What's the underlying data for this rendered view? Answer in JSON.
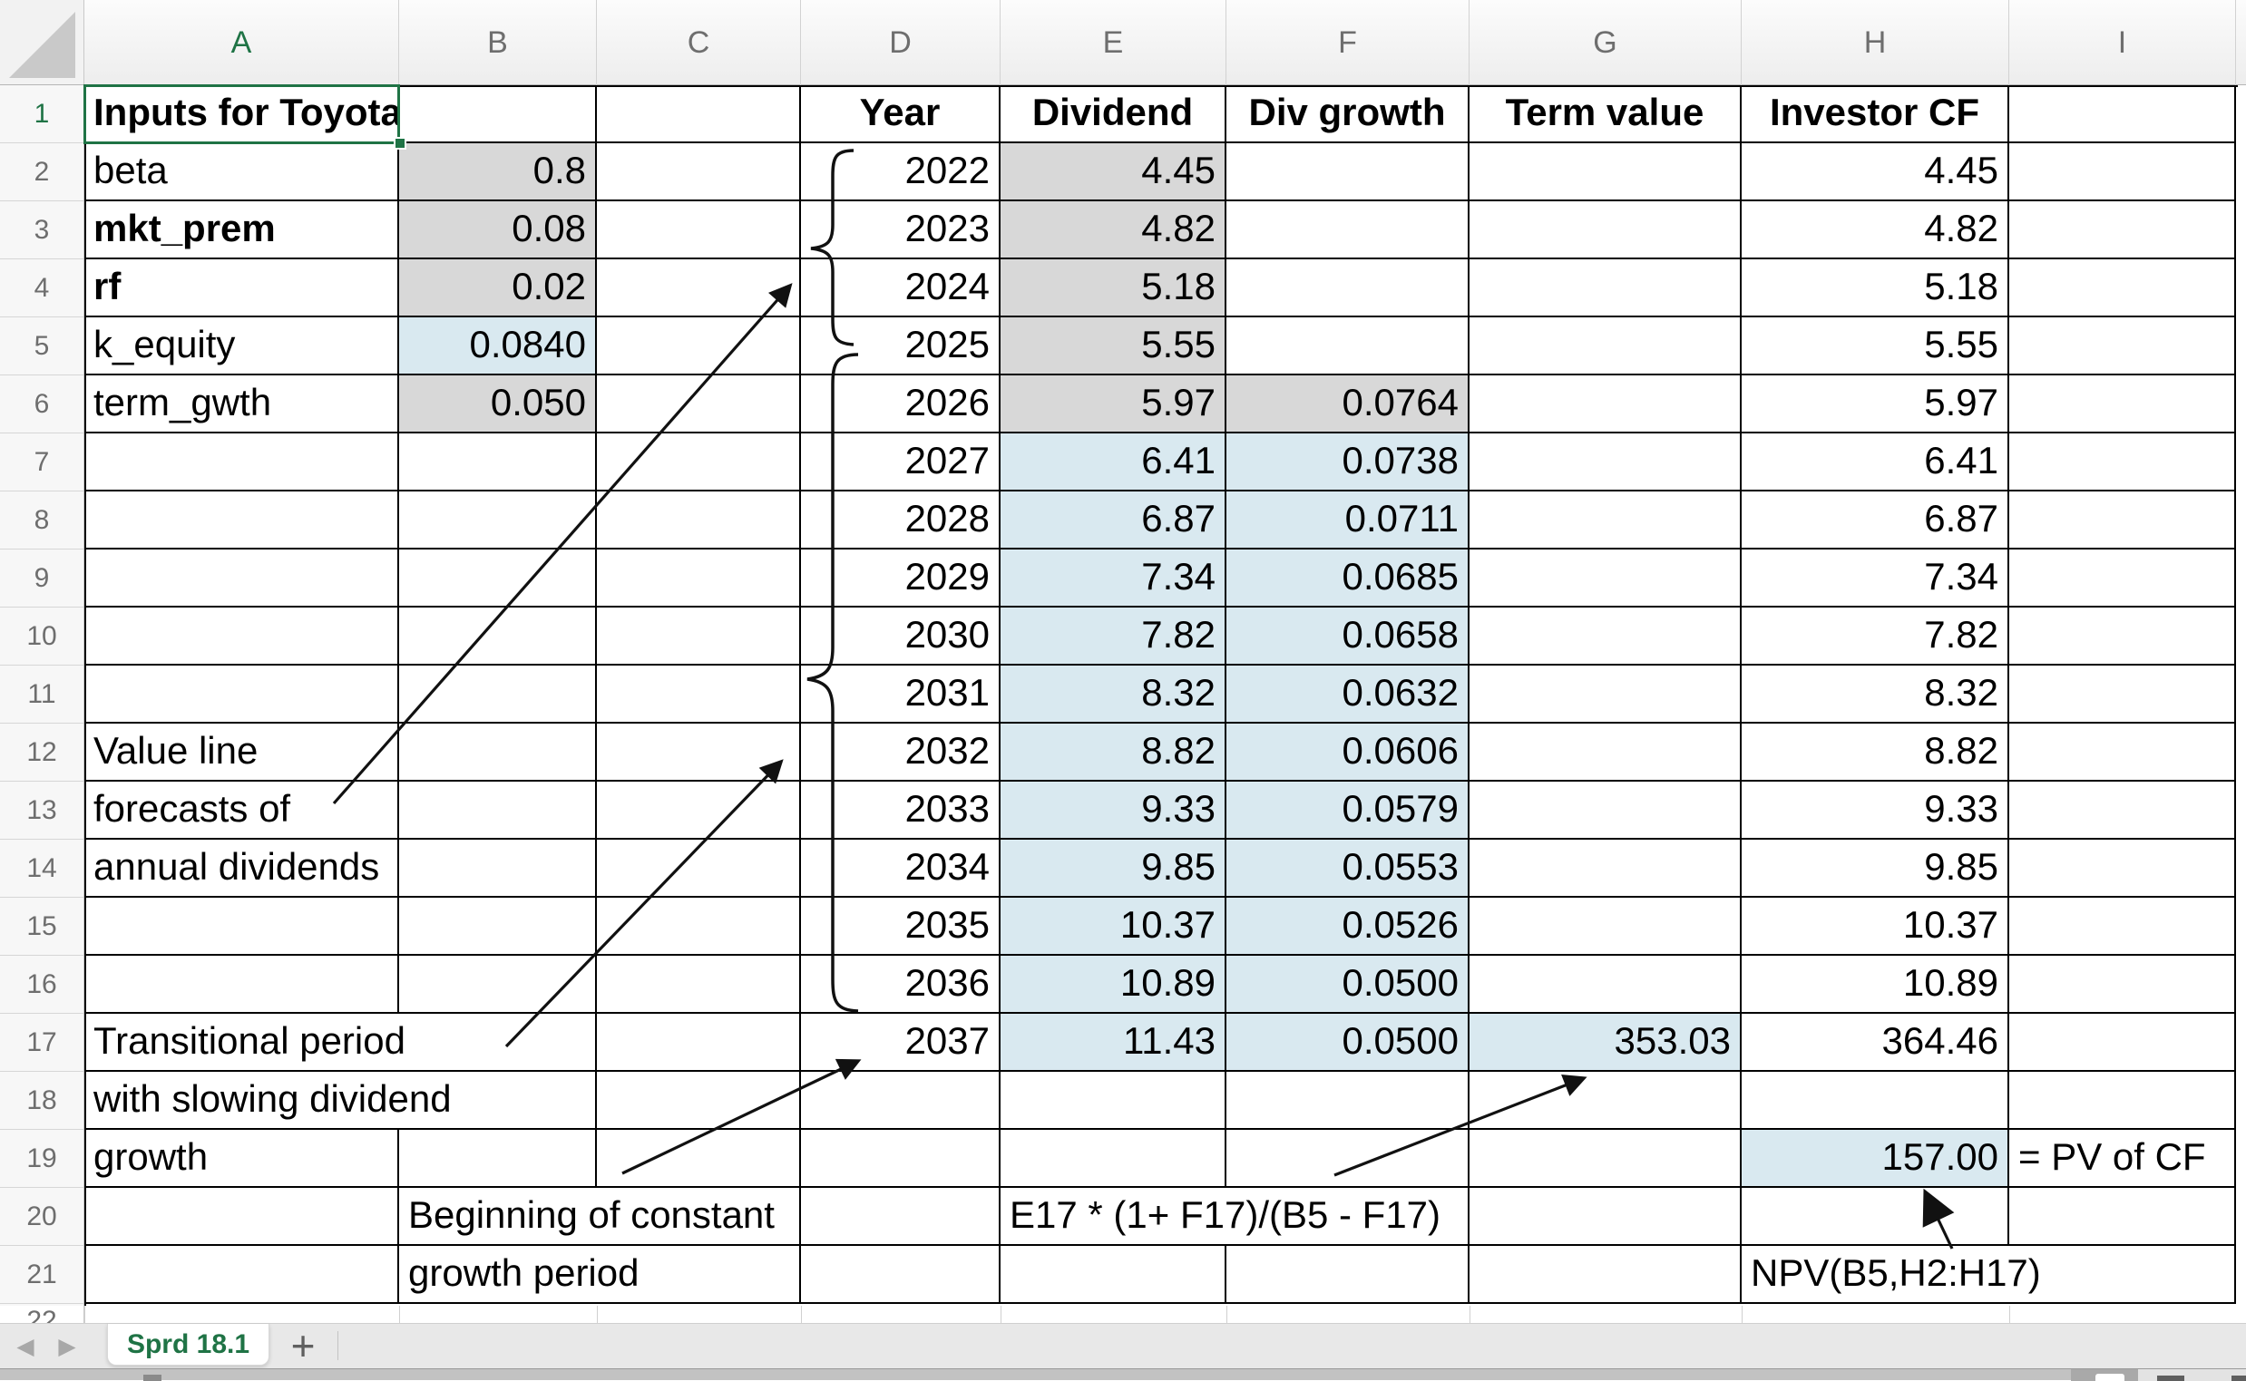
{
  "app": {
    "kind": "spreadsheet-worksheet"
  },
  "colors": {
    "accent_green": "#1f7345",
    "fill_gray": "#d8d8d8",
    "fill_blue": "#d9e9f0",
    "grid_line": "#000000"
  },
  "column_headers": [
    "A",
    "B",
    "C",
    "D",
    "E",
    "F",
    "G",
    "H",
    "I"
  ],
  "row_headers": [
    "1",
    "2",
    "3",
    "4",
    "5",
    "6",
    "7",
    "8",
    "9",
    "10",
    "11",
    "12",
    "13",
    "14",
    "15",
    "16",
    "17",
    "18",
    "19",
    "20",
    "21"
  ],
  "partial_row_header": "22",
  "selection": {
    "active_cell": "A1"
  },
  "sheet_tabs": {
    "nav_prev": "◀",
    "nav_next": "▶",
    "active": "Sprd 18.1",
    "add_label": "+"
  },
  "annotations": {
    "historical_brace": "brace grouping years 2022-2025",
    "forecast_brace": "brace grouping years 2026-2036",
    "term_value_formula": "E17 * (1+ F17)/(B5 - F17)",
    "npv_formula": "NPV(B5,H2:H17)",
    "pv_label": "= PV of CF"
  },
  "cells": {
    "A1": {
      "t": "Inputs for Toyota",
      "bold": true,
      "align": "l"
    },
    "D1": {
      "t": "Year",
      "bold": true,
      "align": "c"
    },
    "E1": {
      "t": "Dividend",
      "bold": true,
      "align": "c"
    },
    "F1": {
      "t": "Div growth",
      "bold": true,
      "align": "c"
    },
    "G1": {
      "t": "Term value",
      "bold": true,
      "align": "c"
    },
    "H1": {
      "t": "Investor CF",
      "bold": true,
      "align": "c"
    },
    "A2": {
      "t": "beta",
      "align": "l"
    },
    "B2": {
      "t": "0.8",
      "align": "r",
      "fill": "gray"
    },
    "D2": {
      "t": "2022",
      "align": "r"
    },
    "E2": {
      "t": "4.45",
      "align": "r",
      "fill": "gray"
    },
    "H2": {
      "t": "4.45",
      "align": "r"
    },
    "A3": {
      "t": "mkt_prem",
      "align": "l",
      "bold": true
    },
    "B3": {
      "t": "0.08",
      "align": "r",
      "fill": "gray"
    },
    "D3": {
      "t": "2023",
      "align": "r"
    },
    "E3": {
      "t": "4.82",
      "align": "r",
      "fill": "gray"
    },
    "H3": {
      "t": "4.82",
      "align": "r"
    },
    "A4": {
      "t": "rf",
      "align": "l",
      "bold": true
    },
    "B4": {
      "t": "0.02",
      "align": "r",
      "fill": "gray"
    },
    "D4": {
      "t": "2024",
      "align": "r"
    },
    "E4": {
      "t": "5.18",
      "align": "r",
      "fill": "gray"
    },
    "H4": {
      "t": "5.18",
      "align": "r"
    },
    "A5": {
      "t": "k_equity",
      "align": "l"
    },
    "B5": {
      "t": "0.0840",
      "align": "r",
      "fill": "blue"
    },
    "D5": {
      "t": "2025",
      "align": "r"
    },
    "E5": {
      "t": "5.55",
      "align": "r",
      "fill": "gray"
    },
    "H5": {
      "t": "5.55",
      "align": "r"
    },
    "A6": {
      "t": "term_gwth",
      "align": "l"
    },
    "B6": {
      "t": "0.050",
      "align": "r",
      "fill": "gray"
    },
    "D6": {
      "t": "2026",
      "align": "r"
    },
    "E6": {
      "t": "5.97",
      "align": "r",
      "fill": "gray"
    },
    "F6": {
      "t": "0.0764",
      "align": "r",
      "fill": "gray"
    },
    "H6": {
      "t": "5.97",
      "align": "r"
    },
    "D7": {
      "t": "2027",
      "align": "r"
    },
    "E7": {
      "t": "6.41",
      "align": "r",
      "fill": "blue"
    },
    "F7": {
      "t": "0.0738",
      "align": "r",
      "fill": "blue"
    },
    "H7": {
      "t": "6.41",
      "align": "r"
    },
    "D8": {
      "t": "2028",
      "align": "r"
    },
    "E8": {
      "t": "6.87",
      "align": "r",
      "fill": "blue"
    },
    "F8": {
      "t": "0.0711",
      "align": "r",
      "fill": "blue"
    },
    "H8": {
      "t": "6.87",
      "align": "r"
    },
    "D9": {
      "t": "2029",
      "align": "r"
    },
    "E9": {
      "t": "7.34",
      "align": "r",
      "fill": "blue"
    },
    "F9": {
      "t": "0.0685",
      "align": "r",
      "fill": "blue"
    },
    "H9": {
      "t": "7.34",
      "align": "r"
    },
    "D10": {
      "t": "2030",
      "align": "r"
    },
    "E10": {
      "t": "7.82",
      "align": "r",
      "fill": "blue"
    },
    "F10": {
      "t": "0.0658",
      "align": "r",
      "fill": "blue"
    },
    "H10": {
      "t": "7.82",
      "align": "r"
    },
    "D11": {
      "t": "2031",
      "align": "r"
    },
    "E11": {
      "t": "8.32",
      "align": "r",
      "fill": "blue"
    },
    "F11": {
      "t": "0.0632",
      "align": "r",
      "fill": "blue"
    },
    "H11": {
      "t": "8.32",
      "align": "r"
    },
    "A12": {
      "t": "Value line",
      "align": "l"
    },
    "D12": {
      "t": "2032",
      "align": "r"
    },
    "E12": {
      "t": "8.82",
      "align": "r",
      "fill": "blue"
    },
    "F12": {
      "t": "0.0606",
      "align": "r",
      "fill": "blue"
    },
    "H12": {
      "t": "8.82",
      "align": "r"
    },
    "A13": {
      "t": "forecasts of",
      "align": "l"
    },
    "D13": {
      "t": "2033",
      "align": "r"
    },
    "E13": {
      "t": "9.33",
      "align": "r",
      "fill": "blue"
    },
    "F13": {
      "t": "0.0579",
      "align": "r",
      "fill": "blue"
    },
    "H13": {
      "t": "9.33",
      "align": "r"
    },
    "A14": {
      "t": "annual dividends",
      "align": "l"
    },
    "D14": {
      "t": "2034",
      "align": "r"
    },
    "E14": {
      "t": "9.85",
      "align": "r",
      "fill": "blue"
    },
    "F14": {
      "t": "0.0553",
      "align": "r",
      "fill": "blue"
    },
    "H14": {
      "t": "9.85",
      "align": "r"
    },
    "D15": {
      "t": "2035",
      "align": "r"
    },
    "E15": {
      "t": "10.37",
      "align": "r",
      "fill": "blue"
    },
    "F15": {
      "t": "0.0526",
      "align": "r",
      "fill": "blue"
    },
    "H15": {
      "t": "10.37",
      "align": "r"
    },
    "D16": {
      "t": "2036",
      "align": "r"
    },
    "E16": {
      "t": "10.89",
      "align": "r",
      "fill": "blue"
    },
    "F16": {
      "t": "0.0500",
      "align": "r",
      "fill": "blue"
    },
    "H16": {
      "t": "10.89",
      "align": "r"
    },
    "A17": {
      "t": "Transitional period",
      "align": "l",
      "noRight": true,
      "spill": true
    },
    "D17": {
      "t": "2037",
      "align": "r"
    },
    "E17": {
      "t": "11.43",
      "align": "r",
      "fill": "blue"
    },
    "F17": {
      "t": "0.0500",
      "align": "r",
      "fill": "blue"
    },
    "G17": {
      "t": "353.03",
      "align": "r",
      "fill": "blue"
    },
    "H17": {
      "t": "364.46",
      "align": "r"
    },
    "A18": {
      "t": "with slowing dividend",
      "align": "l",
      "noRight": true,
      "spill": true
    },
    "A19": {
      "t": "growth",
      "align": "l"
    },
    "H19": {
      "t": "157.00",
      "align": "r",
      "fill": "blue"
    },
    "I19": {
      "t": "= PV of CF",
      "align": "l"
    },
    "B20": {
      "t": "Beginning of constant",
      "align": "l",
      "noRight": true,
      "spill": true
    },
    "E20": {
      "t": "E17 * (1+ F17)/(B5 - F17)",
      "align": "l",
      "noRight": true,
      "spill": true
    },
    "B21": {
      "t": "growth period",
      "align": "l",
      "noRight": true,
      "spill": true
    },
    "H21": {
      "t": "NPV(B5,H2:H17)",
      "align": "l",
      "noRight": true,
      "spill": true
    }
  }
}
